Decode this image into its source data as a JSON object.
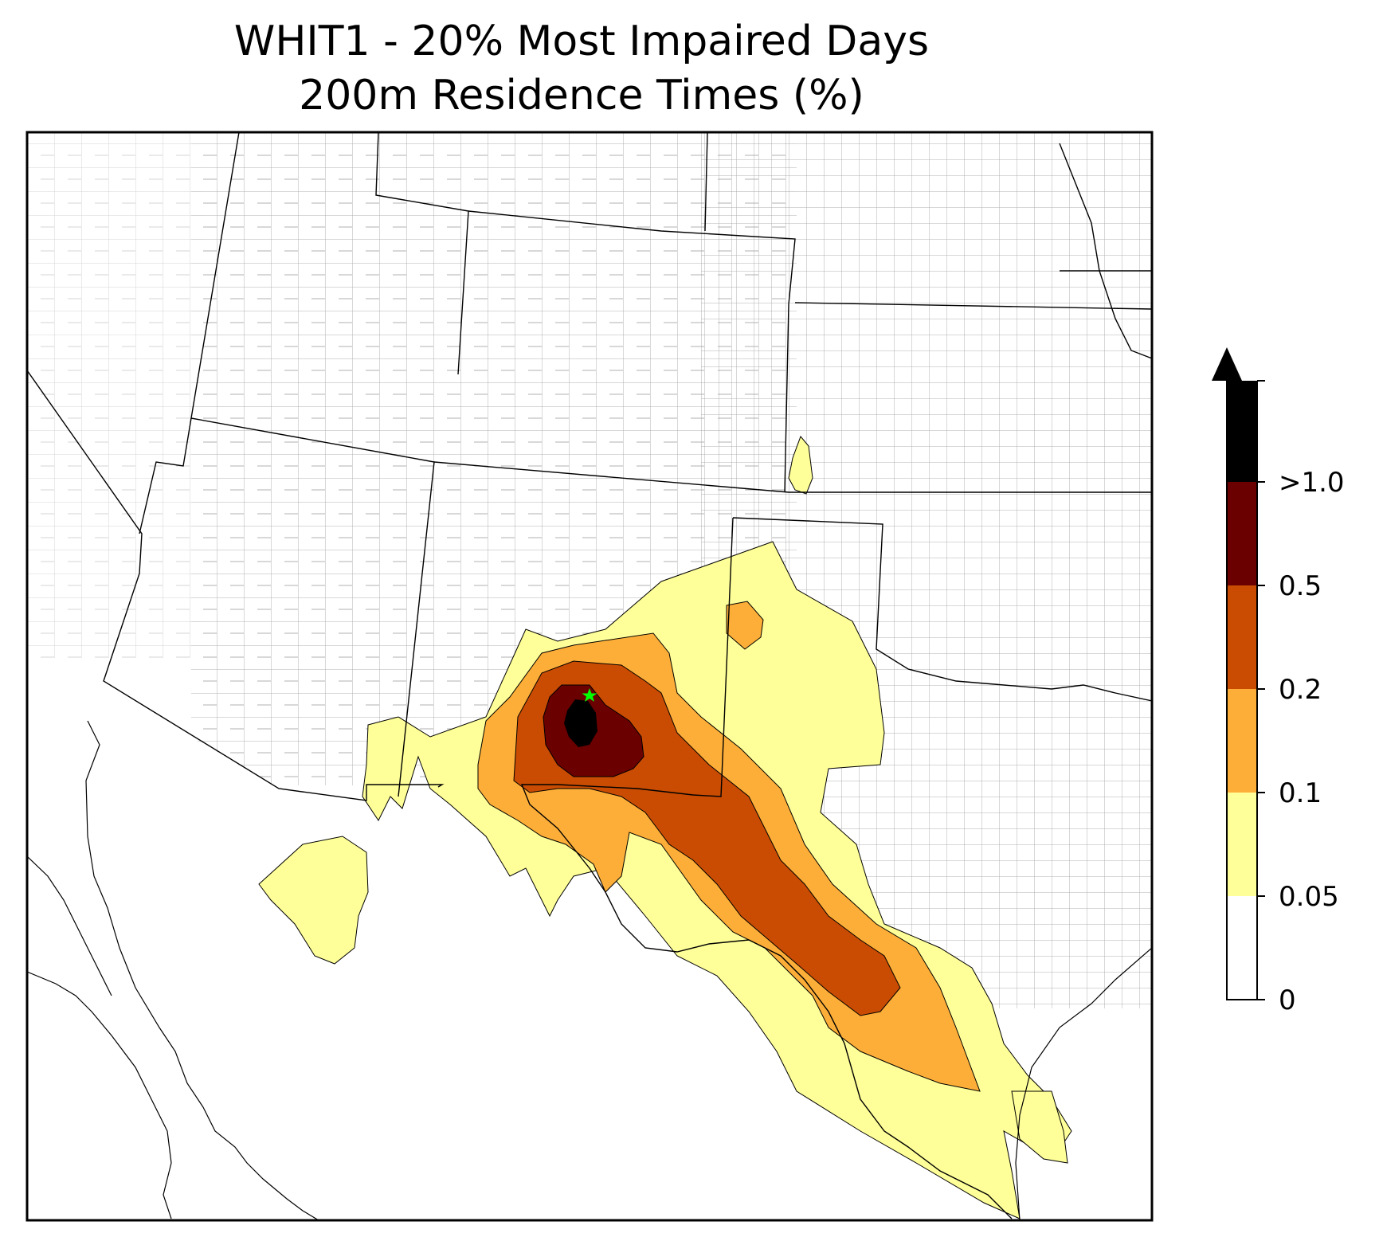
{
  "title": {
    "line1": "WHIT1 - 20% Most Impaired Days",
    "line2": "200m Residence Times (%)"
  },
  "colorbar": {
    "extend": "max",
    "levels": [
      {
        "label": "0",
        "color": "#ffffff"
      },
      {
        "label": "0.05",
        "color": "#ffff99"
      },
      {
        "label": "0.1",
        "color": "#fdae38"
      },
      {
        "label": "0.2",
        "color": "#c94c02"
      },
      {
        "label": "0.5",
        "color": "#6a0000"
      },
      {
        "label": ">1.0",
        "color": "#000000"
      }
    ],
    "overflow_color": "#000000"
  },
  "colors": {
    "county_lines": "#a8a8a8",
    "state_lines": "#000000",
    "site_marker": "#00ff00"
  },
  "map": {
    "site_marker": "star"
  }
}
